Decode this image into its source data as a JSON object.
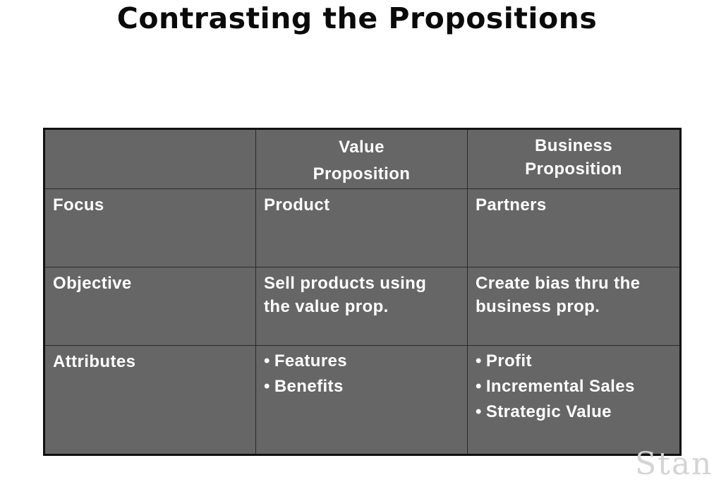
{
  "title": "Contrasting the Propositions",
  "table": {
    "header": {
      "col1": "",
      "col2_line1": "Value",
      "col2_line2": "Proposition",
      "col3_line1": "Business",
      "col3_line2": "Proposition"
    },
    "rows": [
      {
        "label": "Focus",
        "value": "Product",
        "business": "Partners"
      },
      {
        "label": "Objective",
        "value_line1": "Sell products using",
        "value_line2": "the value prop.",
        "business_line1": "Create bias thru the",
        "business_line2": "business prop."
      },
      {
        "label": "Attributes",
        "value_bullets": [
          "Features",
          "Benefits"
        ],
        "business_bullets": [
          "Profit",
          "Incremental Sales",
          "Strategic Value"
        ]
      }
    ]
  },
  "watermark": "Stan",
  "colors": {
    "cell_bg": "#666666",
    "cell_text": "#ffffff",
    "border": "#111111",
    "title": "#0a0a0a"
  }
}
